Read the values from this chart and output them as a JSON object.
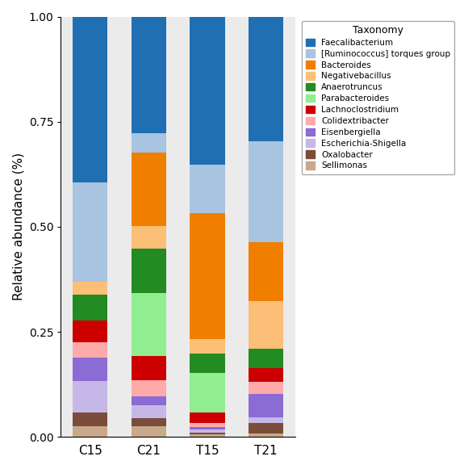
{
  "categories": [
    "C15",
    "C21",
    "T15",
    "T21"
  ],
  "taxonomy": [
    "Sellimonas",
    "Oxalobacter",
    "Escherichia-Shigella",
    "Eisenbergiella",
    "Colidextribacter",
    "Lachnoclostridium",
    "Parabacteroides",
    "Anaerotruncus",
    "Negativebacillus",
    "Bacteroides",
    "[Ruminococcus] torques group",
    "Faecalibacterium"
  ],
  "colors": [
    "#C9A98B",
    "#7B4C3A",
    "#C5B8E8",
    "#8B6BD4",
    "#FFAAAA",
    "#CC0000",
    "#90EE90",
    "#228B22",
    "#FBBF77",
    "#F07F00",
    "#A8C4E0",
    "#1F6FB2"
  ],
  "values": {
    "C15": [
      0.025,
      0.033,
      0.075,
      0.055,
      0.038,
      0.052,
      0.0,
      0.06,
      0.032,
      0.0,
      0.235,
      0.395
    ],
    "C21": [
      0.025,
      0.02,
      0.03,
      0.022,
      0.037,
      0.058,
      0.15,
      0.105,
      0.055,
      0.175,
      0.045,
      0.278
    ],
    "T15": [
      0.007,
      0.004,
      0.006,
      0.006,
      0.01,
      0.025,
      0.095,
      0.045,
      0.035,
      0.3,
      0.115,
      0.352
    ],
    "T21": [
      0.008,
      0.025,
      0.014,
      0.055,
      0.03,
      0.032,
      0.0,
      0.045,
      0.115,
      0.14,
      0.24,
      0.296
    ]
  },
  "ylabel": "Relative abundance (%)",
  "legend_title": "Taxonomy",
  "legend_order": [
    "Faecalibacterium",
    "[Ruminococcus] torques group",
    "Bacteroides",
    "Negativebacillus",
    "Anaerotruncus",
    "Parabacteroides",
    "Lachnoclostridium",
    "Colidextribacter",
    "Eisenbergiella",
    "Escherichia-Shigella",
    "Oxalobacter",
    "Sellimonas"
  ],
  "legend_colors": [
    "#1F6FB2",
    "#A8C4E0",
    "#F07F00",
    "#FBBF77",
    "#228B22",
    "#90EE90",
    "#CC0000",
    "#FFAAAA",
    "#8B6BD4",
    "#C5B8E8",
    "#7B4C3A",
    "#C9A98B"
  ],
  "ylim": [
    0.0,
    1.0
  ],
  "figsize": [
    5.8,
    5.81
  ],
  "dpi": 100,
  "bar_width": 0.6,
  "plot_bg": "#EBEBEB",
  "fig_bg": "#FFFFFF"
}
